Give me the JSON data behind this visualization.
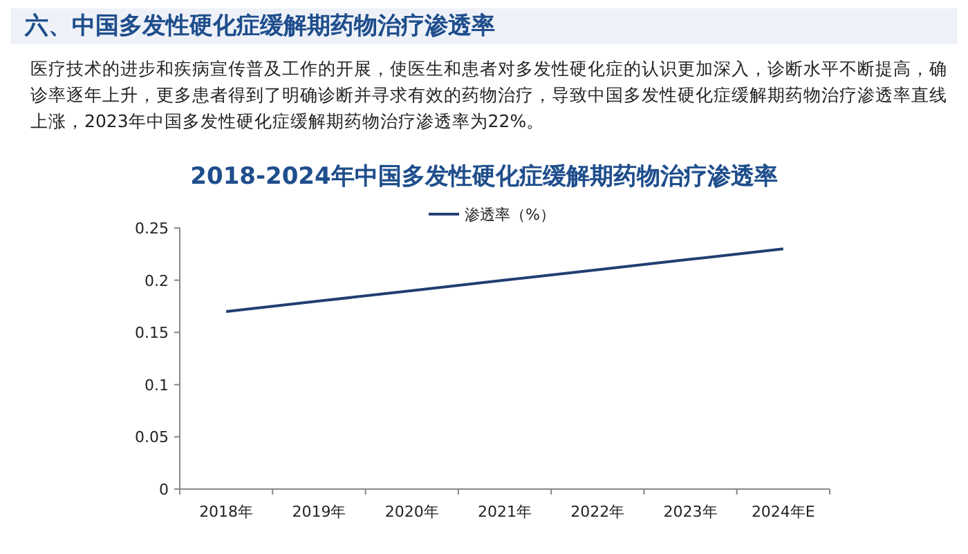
{
  "chart_data": {
    "type": "line",
    "title": "2018-2024年中国多发性硬化症缓解期药物治疗渗透率",
    "annotations": [
      "六、中国多发性硬化症缓解期药物治疗渗透率",
      "医疗技术的进步和疾病宣传普及工作的开展，使医生和患者对多发性硬化症的认识更加深入，诊断水平不断提高，确诊率逐年上升，更多患者得到了明确诊断并寻求有效的药物治疗，导致中国多发性硬化症缓解期药物治疗渗透率直线上涨，2023年中国多发性硬化症缓解期药物治疗渗透率为22%。"
    ],
    "categories": [
      "2018年",
      "2019年",
      "2020年",
      "2021年",
      "2022年",
      "2023年",
      "2024年E"
    ],
    "series": [
      {
        "name": "渗透率（%）",
        "color": "#1f3f72",
        "values": [
          0.17,
          0.18,
          0.19,
          0.2,
          0.21,
          0.22,
          0.23
        ]
      }
    ],
    "ylim": [
      0,
      0.25
    ],
    "yticks": [
      0,
      0.05,
      0.1,
      0.15,
      0.2,
      0.25
    ],
    "legend": "top",
    "grid": false,
    "marker": "none",
    "line_style": "solid"
  }
}
